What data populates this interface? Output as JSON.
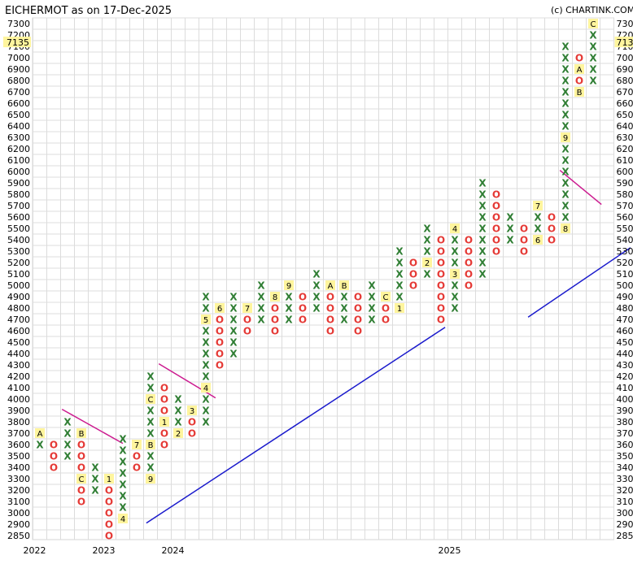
{
  "chart_data": {
    "type": "point_and_figure",
    "title": "EICHERMOT as on 17-Dec-2025",
    "copyright": "(c) CHARTINK.COM",
    "box_size": 100,
    "current_price": 7135,
    "current_price_label": "7135",
    "grid": true,
    "colors": {
      "x": "#2e7d32",
      "o": "#e53935",
      "marker_bg": "#fff59d",
      "trend": "#1a1acc",
      "resistance": "#cc1a8f"
    },
    "y_ticks": [
      7300,
      7200,
      7100,
      7000,
      6900,
      6800,
      6700,
      6600,
      6500,
      6400,
      6300,
      6200,
      6100,
      6000,
      5900,
      5800,
      5700,
      5600,
      5500,
      5400,
      5300,
      5200,
      5100,
      5000,
      4900,
      4800,
      4700,
      4600,
      4500,
      4400,
      4300,
      4200,
      4100,
      4000,
      3900,
      3800,
      3700,
      3600,
      3500,
      3400,
      3300,
      3200,
      3100,
      3000,
      2900,
      2850
    ],
    "x_year_labels": [
      {
        "label": "2022",
        "col": 0
      },
      {
        "label": "2023",
        "col": 5
      },
      {
        "label": "2024",
        "col": 10
      },
      {
        "label": "2025",
        "col": 30
      }
    ],
    "columns": [
      {
        "type": "X",
        "from": 3600,
        "to": 3700,
        "markers": {
          "3700": "A"
        }
      },
      {
        "type": "O",
        "from": 3600,
        "to": 3400
      },
      {
        "type": "X",
        "from": 3500,
        "to": 3800
      },
      {
        "type": "O",
        "from": 3700,
        "to": 3100,
        "markers": {
          "3700": "B",
          "3300": "C"
        }
      },
      {
        "type": "X",
        "from": 3200,
        "to": 3400
      },
      {
        "type": "O",
        "from": 3300,
        "to": 2850,
        "markers": {
          "3300": "1",
          "2950": "3"
        }
      },
      {
        "type": "X",
        "from": 2950,
        "to": 3700,
        "markers": {
          "2950": "4",
          "3400": "5"
        }
      },
      {
        "type": "O",
        "from": 3600,
        "to": 3400,
        "markers": {
          "3600": "7"
        }
      },
      {
        "type": "X",
        "from": 3300,
        "to": 4200,
        "markers": {
          "3300": "9",
          "3600": "B",
          "4000": "C"
        }
      },
      {
        "type": "O",
        "from": 4100,
        "to": 3600,
        "markers": {
          "3800": "1"
        }
      },
      {
        "type": "X",
        "from": 3700,
        "to": 4000,
        "markers": {
          "3700": "2"
        }
      },
      {
        "type": "O",
        "from": 3900,
        "to": 3700,
        "markers": {
          "3900": "3"
        }
      },
      {
        "type": "X",
        "from": 3800,
        "to": 4900,
        "markers": {
          "4100": "4",
          "4700": "5"
        }
      },
      {
        "type": "O",
        "from": 4800,
        "to": 4300,
        "markers": {
          "4800": "6"
        }
      },
      {
        "type": "X",
        "from": 4400,
        "to": 4900
      },
      {
        "type": "O",
        "from": 4800,
        "to": 4600,
        "markers": {
          "4800": "7"
        }
      },
      {
        "type": "X",
        "from": 4700,
        "to": 5000
      },
      {
        "type": "O",
        "from": 4900,
        "to": 4600,
        "markers": {
          "4900": "8"
        }
      },
      {
        "type": "X",
        "from": 4700,
        "to": 5000,
        "markers": {
          "5000": "9"
        }
      },
      {
        "type": "O",
        "from": 4900,
        "to": 4700
      },
      {
        "type": "X",
        "from": 4800,
        "to": 5100
      },
      {
        "type": "O",
        "from": 5000,
        "to": 4600,
        "markers": {
          "5000": "A"
        }
      },
      {
        "type": "X",
        "from": 4700,
        "to": 5000,
        "markers": {
          "5000": "B"
        }
      },
      {
        "type": "O",
        "from": 4900,
        "to": 4600
      },
      {
        "type": "X",
        "from": 4700,
        "to": 5000
      },
      {
        "type": "O",
        "from": 4900,
        "to": 4700,
        "markers": {
          "4900": "C"
        }
      },
      {
        "type": "X",
        "from": 4800,
        "to": 5300,
        "markers": {
          "4800": "1"
        }
      },
      {
        "type": "O",
        "from": 5200,
        "to": 5000
      },
      {
        "type": "X",
        "from": 5100,
        "to": 5500,
        "markers": {
          "5200": "2"
        }
      },
      {
        "type": "O",
        "from": 5400,
        "to": 4700
      },
      {
        "type": "X",
        "from": 4800,
        "to": 5500,
        "markers": {
          "5100": "3",
          "5500": "4"
        }
      },
      {
        "type": "O",
        "from": 5400,
        "to": 5000
      },
      {
        "type": "X",
        "from": 5100,
        "to": 5900
      },
      {
        "type": "O",
        "from": 5800,
        "to": 5300
      },
      {
        "type": "X",
        "from": 5400,
        "to": 5600
      },
      {
        "type": "O",
        "from": 5500,
        "to": 5300
      },
      {
        "type": "X",
        "from": 5400,
        "to": 5700,
        "markers": {
          "5700": "7",
          "5400": "6"
        }
      },
      {
        "type": "O",
        "from": 5600,
        "to": 5400
      },
      {
        "type": "X",
        "from": 5500,
        "to": 7100,
        "markers": {
          "5500": "8",
          "6300": "9"
        }
      },
      {
        "type": "O",
        "from": 7000,
        "to": 6700,
        "markers": {
          "6900": "A",
          "6700": "B"
        }
      },
      {
        "type": "X",
        "from": 6800,
        "to": 7300,
        "markers": {
          "7300": "C"
        }
      }
    ],
    "trend_lines": [
      {
        "type": "support",
        "from": {
          "col": 8.2,
          "price": 2910
        },
        "to": {
          "col": 29.8,
          "price": 4630
        }
      },
      {
        "type": "support",
        "from": {
          "col": 35.8,
          "price": 4720
        },
        "to": {
          "col": 43.2,
          "price": 5330
        }
      },
      {
        "type": "resistance",
        "from": {
          "col": 2.1,
          "price": 3910
        },
        "to": {
          "col": 6.5,
          "price": 3610
        }
      },
      {
        "type": "resistance",
        "from": {
          "col": 9.1,
          "price": 4310
        },
        "to": {
          "col": 13.2,
          "price": 4010
        }
      },
      {
        "type": "resistance",
        "from": {
          "col": 38.1,
          "price": 6010
        },
        "to": {
          "col": 41.1,
          "price": 5710
        }
      }
    ]
  }
}
